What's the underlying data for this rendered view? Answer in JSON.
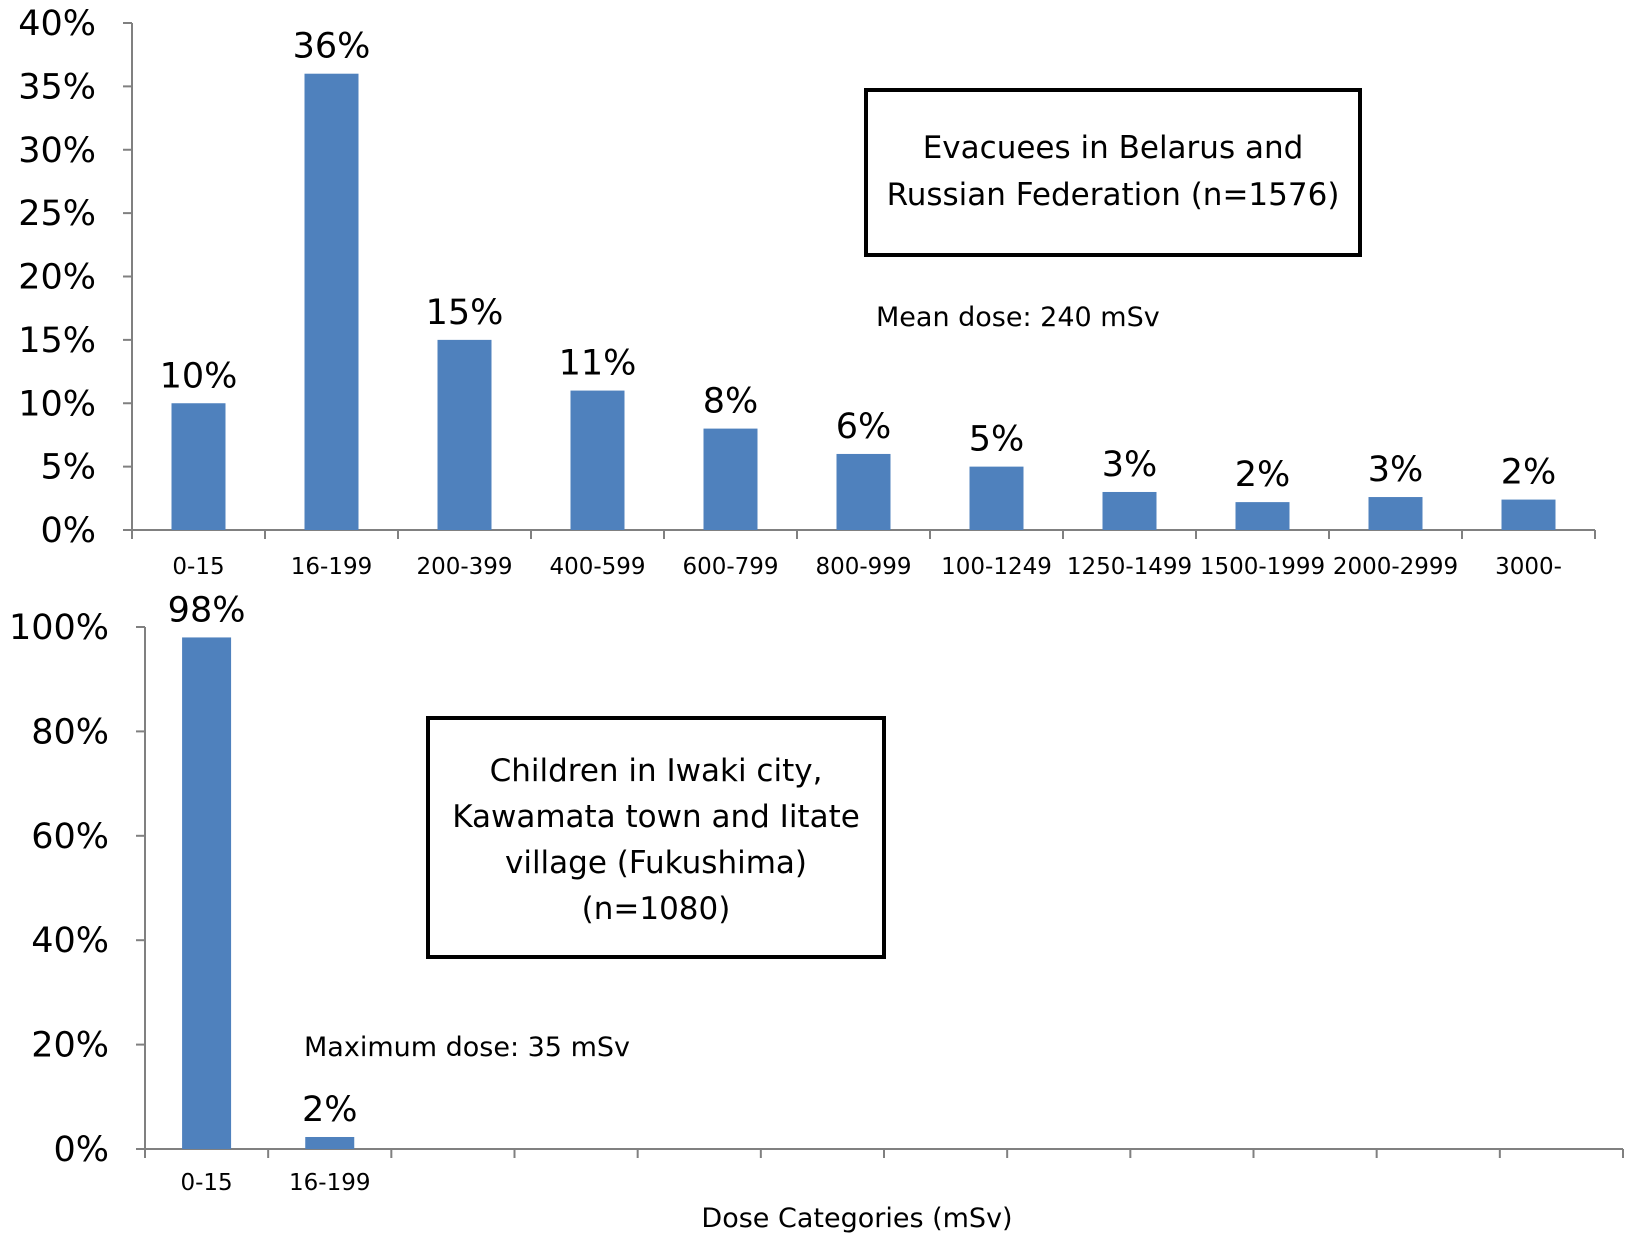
{
  "chart_data": [
    {
      "type": "bar",
      "categories": [
        "0-15",
        "16-199",
        "200-399",
        "400-599",
        "600-799",
        "800-999",
        "100-1249",
        "1250-1499",
        "1500-1999",
        "2000-2999",
        "3000-"
      ],
      "values": [
        10,
        36,
        15,
        11,
        8,
        6,
        5,
        3,
        2.2,
        2.6,
        2.4
      ],
      "data_labels": [
        "10%",
        "36%",
        "15%",
        "11%",
        "8%",
        "6%",
        "5%",
        "3%",
        "2%",
        "3%",
        "2%"
      ],
      "ylim": [
        0,
        40
      ],
      "yticks": [
        0,
        5,
        10,
        15,
        20,
        25,
        30,
        35,
        40
      ],
      "ytick_labels": [
        "0%",
        "5%",
        "10%",
        "15%",
        "20%",
        "25%",
        "30%",
        "35%",
        "40%"
      ],
      "annotation_box": [
        "Evacuees in Belarus and",
        "Russian Federation (n=1576)"
      ],
      "annotation_note": "Mean dose: 240 mSv",
      "bar_color": "#4f81bd",
      "grid": false
    },
    {
      "type": "bar",
      "categories": [
        "0-15",
        "16-199",
        "",
        "",
        "",
        "",
        "",
        "",
        "",
        "",
        "",
        ""
      ],
      "values": [
        98,
        2.3,
        null,
        null,
        null,
        null,
        null,
        null,
        null,
        null,
        null,
        null
      ],
      "data_labels": [
        "98%",
        "2%",
        "",
        "",
        "",
        "",
        "",
        "",
        "",
        "",
        "",
        ""
      ],
      "ylim": [
        0,
        100
      ],
      "yticks": [
        0,
        20,
        40,
        60,
        80,
        100
      ],
      "ytick_labels": [
        "0%",
        "20%",
        "40%",
        "60%",
        "80%",
        "100%"
      ],
      "xlabel": "Dose Categories (mSv)",
      "annotation_box": [
        "Children in Iwaki city,",
        "Kawamata town and Iitate",
        "village (Fukushima)",
        "(n=1080)"
      ],
      "annotation_note": "Maximum dose: 35 mSv",
      "bar_color": "#4f81bd",
      "grid": false
    }
  ]
}
